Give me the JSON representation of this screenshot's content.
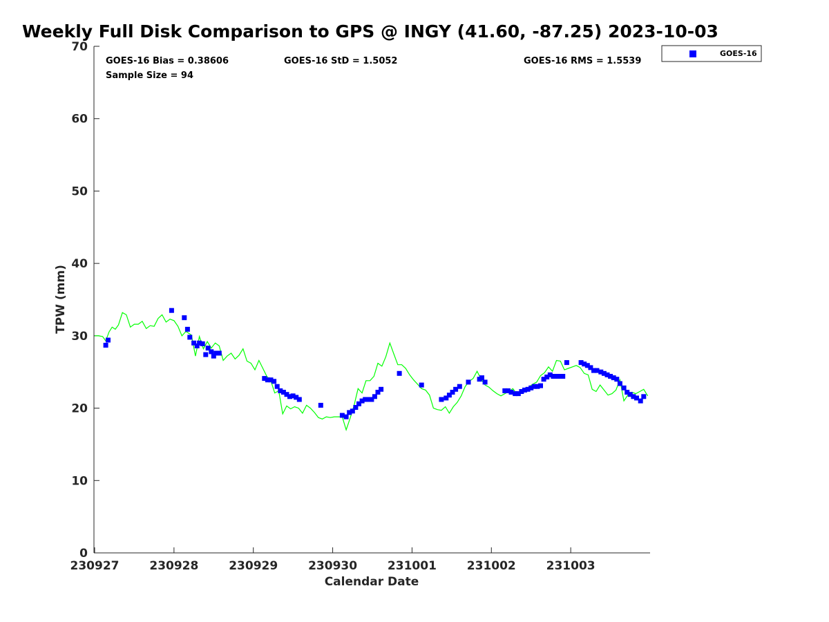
{
  "chart_data": {
    "type": "scatter",
    "title": "Weekly Full Disk Comparison to GPS @ INGY (41.60, -87.25) 2023-10-03",
    "xlabel": "Calendar Date",
    "ylabel": "TPW (mm)",
    "xlim": [
      0,
      7
    ],
    "ylim": [
      0,
      70
    ],
    "x_ticks": [
      0,
      1,
      2,
      3,
      4,
      5,
      6
    ],
    "x_tick_labels": [
      "230927",
      "230928",
      "230929",
      "230930",
      "231001",
      "231002",
      "231003"
    ],
    "y_ticks": [
      0,
      10,
      20,
      30,
      40,
      50,
      60,
      70
    ],
    "y_tick_labels": [
      "0",
      "10",
      "20",
      "30",
      "40",
      "50",
      "60",
      "70"
    ],
    "grid": false,
    "legend_position": "top-right",
    "stats": {
      "bias": "GOES-16 Bias = 0.38606",
      "std": "GOES-16 StD = 1.5052",
      "rms": "GOES-16 RMS = 1.5539",
      "sample_size": "Sample Size = 94"
    },
    "series": [
      {
        "name": "GOES-16",
        "kind": "markers",
        "color": "#0000ff",
        "x": [
          0.14,
          0.17,
          0.97,
          1.13,
          1.17,
          1.2,
          1.25,
          1.29,
          1.32,
          1.36,
          1.4,
          1.43,
          1.47,
          1.5,
          1.53,
          1.57,
          2.14,
          2.18,
          2.22,
          2.26,
          2.3,
          2.34,
          2.38,
          2.42,
          2.46,
          2.5,
          2.54,
          2.58,
          2.85,
          3.12,
          3.17,
          3.21,
          3.25,
          3.29,
          3.33,
          3.37,
          3.41,
          3.45,
          3.49,
          3.53,
          3.57,
          3.61,
          3.84,
          4.12,
          4.37,
          4.43,
          4.47,
          4.51,
          4.55,
          4.6,
          4.71,
          4.85,
          4.88,
          4.92,
          5.17,
          5.21,
          5.25,
          5.3,
          5.34,
          5.38,
          5.42,
          5.46,
          5.5,
          5.54,
          5.58,
          5.62,
          5.66,
          5.7,
          5.74,
          5.78,
          5.82,
          5.86,
          5.9,
          5.95,
          6.13,
          6.17,
          6.21,
          6.25,
          6.29,
          6.33,
          6.38,
          6.42,
          6.46,
          6.5,
          6.54,
          6.58,
          6.62,
          6.67,
          6.71,
          6.75,
          6.79,
          6.83,
          6.88,
          6.92
        ],
        "y": [
          28.7,
          29.4,
          33.5,
          32.5,
          30.9,
          29.8,
          29.0,
          28.6,
          29.0,
          28.9,
          27.4,
          28.3,
          27.8,
          27.2,
          27.6,
          27.6,
          24.1,
          23.9,
          23.9,
          23.7,
          23.0,
          22.4,
          22.2,
          21.9,
          21.6,
          21.7,
          21.5,
          21.2,
          20.4,
          19.0,
          18.8,
          19.4,
          19.6,
          20.1,
          20.6,
          21.0,
          21.2,
          21.2,
          21.2,
          21.6,
          22.2,
          22.6,
          24.8,
          23.2,
          21.2,
          21.4,
          21.8,
          22.2,
          22.6,
          23.0,
          23.6,
          24.0,
          24.2,
          23.6,
          22.4,
          22.4,
          22.2,
          22.0,
          22.0,
          22.3,
          22.5,
          22.6,
          22.8,
          23.0,
          23.0,
          23.1,
          24.0,
          24.3,
          24.6,
          24.4,
          24.4,
          24.4,
          24.4,
          26.3,
          26.3,
          26.1,
          25.9,
          25.6,
          25.2,
          25.2,
          25.0,
          24.8,
          24.6,
          24.4,
          24.2,
          24.0,
          23.4,
          22.8,
          22.2,
          21.9,
          21.6,
          21.4,
          21.0,
          21.6
        ]
      },
      {
        "kind": "line",
        "color": "#00ff00",
        "x": [
          0.0,
          0.05,
          0.1,
          0.14,
          0.18,
          0.22,
          0.26,
          0.3,
          0.35,
          0.4,
          0.45,
          0.5,
          0.55,
          0.6,
          0.65,
          0.7,
          0.75,
          0.8,
          0.85,
          0.9,
          0.95,
          1.0,
          1.05,
          1.1,
          1.15,
          1.18,
          1.22,
          1.27,
          1.32,
          1.37,
          1.42,
          1.47,
          1.52,
          1.57,
          1.62,
          1.67,
          1.72,
          1.77,
          1.82,
          1.87,
          1.92,
          1.97,
          2.02,
          2.07,
          2.12,
          2.17,
          2.22,
          2.27,
          2.32,
          2.37,
          2.42,
          2.47,
          2.52,
          2.57,
          2.62,
          2.67,
          2.72,
          2.77,
          2.82,
          2.87,
          2.92,
          2.97,
          3.02,
          3.07,
          3.12,
          3.17,
          3.22,
          3.27,
          3.32,
          3.37,
          3.42,
          3.47,
          3.52,
          3.57,
          3.62,
          3.67,
          3.72,
          3.77,
          3.82,
          3.87,
          3.92,
          3.97,
          4.02,
          4.07,
          4.12,
          4.17,
          4.22,
          4.27,
          4.32,
          4.37,
          4.42,
          4.47,
          4.52,
          4.57,
          4.62,
          4.67,
          4.72,
          4.77,
          4.82,
          4.87,
          4.92,
          4.97,
          5.02,
          5.07,
          5.12,
          5.17,
          5.22,
          5.27,
          5.32,
          5.37,
          5.42,
          5.47,
          5.52,
          5.57,
          5.62,
          5.67,
          5.72,
          5.77,
          5.82,
          5.87,
          5.92,
          5.97,
          6.02,
          6.07,
          6.12,
          6.17,
          6.22,
          6.27,
          6.32,
          6.37,
          6.42,
          6.47,
          6.52,
          6.57,
          6.62,
          6.67,
          6.72,
          6.77,
          6.82,
          6.87,
          6.92,
          6.97
        ],
        "y": [
          30.0,
          30.0,
          29.9,
          29.3,
          30.5,
          31.2,
          30.9,
          31.5,
          33.2,
          32.9,
          31.2,
          31.6,
          31.6,
          32.0,
          31.0,
          31.4,
          31.3,
          32.4,
          32.9,
          31.9,
          32.3,
          32.1,
          31.3,
          30.0,
          30.6,
          30.4,
          30.1,
          27.2,
          29.9,
          28.2,
          29.2,
          28.3,
          29.0,
          28.6,
          26.6,
          27.2,
          27.6,
          26.8,
          27.3,
          28.2,
          26.5,
          26.2,
          25.3,
          26.6,
          25.5,
          24.4,
          23.8,
          22.1,
          22.4,
          19.2,
          20.3,
          19.9,
          20.2,
          20.0,
          19.3,
          20.4,
          20.0,
          19.4,
          18.7,
          18.5,
          18.8,
          18.7,
          18.8,
          18.8,
          18.8,
          17.0,
          18.6,
          20.4,
          22.7,
          22.1,
          23.8,
          23.8,
          24.4,
          26.2,
          25.8,
          27.1,
          29.0,
          27.5,
          26.0,
          26.0,
          25.5,
          24.6,
          23.9,
          23.3,
          22.7,
          22.5,
          21.8,
          20.0,
          19.8,
          19.7,
          20.2,
          19.3,
          20.2,
          20.8,
          21.7,
          23.0,
          23.7,
          24.1,
          25.1,
          24.0,
          23.2,
          22.9,
          22.4,
          22.0,
          21.7,
          22.0,
          22.3,
          22.7,
          22.0,
          22.2,
          22.5,
          22.9,
          23.3,
          23.6,
          24.5,
          24.9,
          25.7,
          25.1,
          26.6,
          26.5,
          25.3,
          25.5,
          25.7,
          25.9,
          25.6,
          24.8,
          24.6,
          22.6,
          22.3,
          23.2,
          22.5,
          21.8,
          22.0,
          22.5,
          23.9,
          21.0,
          21.8,
          22.2,
          22.0,
          22.3,
          22.6,
          21.7
        ]
      }
    ]
  }
}
